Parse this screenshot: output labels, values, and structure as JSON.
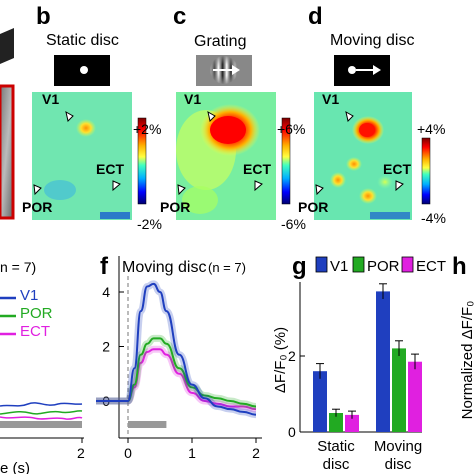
{
  "panel_letters": {
    "b": "b",
    "c": "c",
    "d": "d",
    "f": "f",
    "g": "g",
    "h": "h"
  },
  "row1": {
    "b_title": "Static disc",
    "c_title": "Grating",
    "d_title": "Moving disc",
    "b_scale": {
      "max": "+2%",
      "min": "-2%"
    },
    "c_scale": {
      "max": "+6%",
      "min": "-6%"
    },
    "d_scale": {
      "max": "+4%",
      "min": "-4%"
    },
    "area_labels": {
      "v1": "V1",
      "por": "POR",
      "ect": "ECT"
    }
  },
  "colors": {
    "v1": "#1f3fbf",
    "por": "#22aa22",
    "ect": "#e020e0"
  },
  "chart_data": [
    {
      "type": "line",
      "panel": "e",
      "title_fragment": "n = 7)",
      "xlabel_fragment": "e (s)",
      "x_ticks": [
        2
      ],
      "legend": [
        "V1",
        "POR",
        "ECT"
      ]
    },
    {
      "type": "line",
      "panel": "f",
      "title": "Moving disc",
      "n_label": "(n = 7)",
      "xlim": [
        -0.5,
        2
      ],
      "ylim": [
        -1,
        4.5
      ],
      "x_ticks": [
        0,
        1,
        2
      ],
      "y_ticks": [
        0,
        2,
        4
      ],
      "stimulus_bar": [
        0,
        0.6
      ],
      "series": [
        {
          "name": "V1",
          "x": [
            -0.5,
            0,
            0.1,
            0.2,
            0.3,
            0.4,
            0.5,
            0.6,
            0.8,
            1.0,
            1.2,
            1.4,
            1.6,
            1.8,
            2.0
          ],
          "y": [
            0,
            0,
            1.2,
            3.3,
            4.2,
            4.3,
            4.0,
            3.3,
            1.7,
            0.6,
            0.1,
            -0.2,
            -0.3,
            -0.4,
            -0.5
          ]
        },
        {
          "name": "POR",
          "x": [
            -0.5,
            0,
            0.1,
            0.2,
            0.3,
            0.4,
            0.5,
            0.6,
            0.8,
            1.0,
            1.2,
            1.4,
            1.6,
            1.8,
            2.0
          ],
          "y": [
            0,
            0,
            0.6,
            1.7,
            2.1,
            2.3,
            2.3,
            2.1,
            1.2,
            0.5,
            0.2,
            0.1,
            0,
            -0.1,
            -0.2
          ]
        },
        {
          "name": "ECT",
          "x": [
            -0.5,
            0,
            0.1,
            0.2,
            0.3,
            0.4,
            0.5,
            0.6,
            0.8,
            1.0,
            1.2,
            1.4,
            1.6,
            1.8,
            2.0
          ],
          "y": [
            0,
            0,
            0.5,
            1.4,
            1.8,
            1.9,
            1.9,
            1.7,
            1.0,
            0.3,
            0,
            -0.1,
            -0.2,
            -0.2,
            -0.3
          ]
        }
      ]
    },
    {
      "type": "bar",
      "panel": "g",
      "ylabel": "ΔF/F₀ (%)",
      "ylim": [
        0,
        4
      ],
      "y_ticks": [
        0,
        2
      ],
      "categories": [
        [
          "Static",
          "disc"
        ],
        [
          "Moving",
          "disc"
        ]
      ],
      "legend": [
        "V1",
        "POR",
        "ECT"
      ],
      "series": [
        {
          "name": "V1",
          "values": [
            1.6,
            3.7
          ],
          "errors": [
            0.2,
            0.2
          ]
        },
        {
          "name": "POR",
          "values": [
            0.5,
            2.2
          ],
          "errors": [
            0.1,
            0.2
          ]
        },
        {
          "name": "ECT",
          "values": [
            0.45,
            1.85
          ],
          "errors": [
            0.1,
            0.2
          ]
        }
      ]
    }
  ],
  "panel_h": {
    "ylabel": "Normalized ΔF/F₀"
  }
}
